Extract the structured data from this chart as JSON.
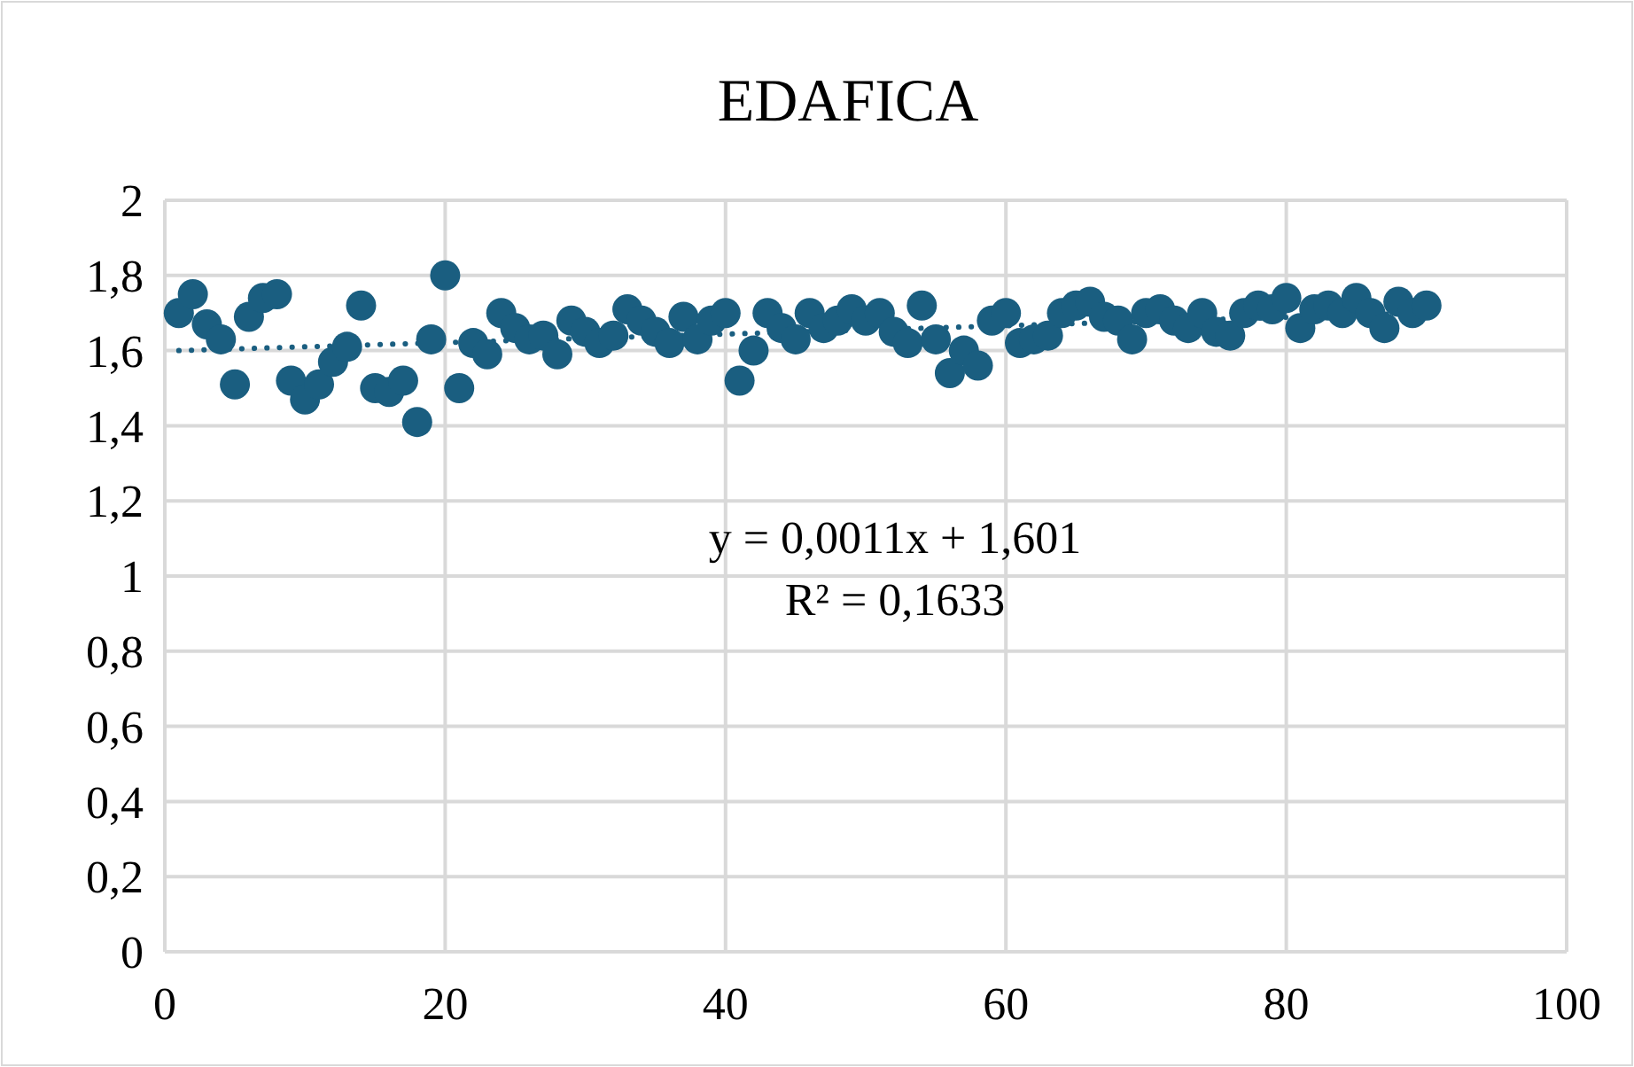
{
  "chart_data": {
    "type": "scatter",
    "title": "EDAFICA",
    "xlim": [
      0,
      100
    ],
    "xticks": [
      0,
      20,
      40,
      60,
      80,
      100
    ],
    "ylim": [
      0,
      2
    ],
    "yticks": [
      0,
      {
        "value": 0.2,
        "label": "0,2"
      },
      {
        "value": 0.4,
        "label": "0,4"
      },
      {
        "value": 0.6,
        "label": "0,6"
      },
      {
        "value": 0.8,
        "label": "0,8"
      },
      1,
      {
        "value": 1.2,
        "label": "1,2"
      },
      {
        "value": 1.4,
        "label": "1,4"
      },
      {
        "value": 1.6,
        "label": "1,6"
      },
      {
        "value": 1.8,
        "label": "1,8"
      },
      2
    ],
    "grid": true,
    "annotations": [
      "y = 0,0011x + 1,601",
      "R² = 0,1633"
    ],
    "series": [
      {
        "color": "#1a5e80",
        "marker": "circle",
        "x": [
          1,
          2,
          3,
          4,
          5,
          6,
          7,
          8,
          9,
          10,
          11,
          12,
          13,
          14,
          15,
          16,
          17,
          18,
          19,
          20,
          21,
          22,
          23,
          24,
          25,
          26,
          27,
          28,
          29,
          30,
          31,
          32,
          33,
          34,
          35,
          36,
          37,
          38,
          39,
          40,
          41,
          42,
          43,
          44,
          45,
          46,
          47,
          48,
          49,
          50,
          51,
          52,
          53,
          54,
          55,
          56,
          57,
          58,
          59,
          60,
          61,
          62,
          63,
          64,
          65,
          66,
          67,
          68,
          69,
          70,
          71,
          72,
          73,
          74,
          75,
          76,
          77,
          78,
          79,
          80,
          81,
          82,
          83,
          84,
          85,
          86,
          87,
          88,
          89,
          90
        ],
        "values": [
          1.7,
          1.75,
          1.67,
          1.63,
          1.51,
          1.69,
          1.74,
          1.75,
          1.52,
          1.47,
          1.51,
          1.57,
          1.61,
          1.72,
          1.5,
          1.49,
          1.52,
          1.41,
          1.63,
          1.8,
          1.5,
          1.62,
          1.59,
          1.7,
          1.66,
          1.63,
          1.64,
          1.59,
          1.68,
          1.65,
          1.62,
          1.64,
          1.71,
          1.68,
          1.65,
          1.62,
          1.69,
          1.63,
          1.68,
          1.7,
          1.52,
          1.6,
          1.7,
          1.66,
          1.63,
          1.7,
          1.66,
          1.68,
          1.71,
          1.68,
          1.7,
          1.65,
          1.62,
          1.72,
          1.63,
          1.54,
          1.6,
          1.56,
          1.68,
          1.7,
          1.62,
          1.63,
          1.64,
          1.7,
          1.72,
          1.73,
          1.69,
          1.68,
          1.63,
          1.7,
          1.71,
          1.68,
          1.66,
          1.7,
          1.65,
          1.64,
          1.7,
          1.72,
          1.71,
          1.74,
          1.66,
          1.71,
          1.72,
          1.7,
          1.74,
          1.7,
          1.66,
          1.73,
          1.7,
          1.72
        ]
      },
      {
        "type": "line",
        "color": "#1a5e80",
        "line_style": "dotted",
        "marker": "none",
        "x": [
          1,
          90
        ],
        "values": [
          1.6,
          1.7
        ]
      }
    ]
  }
}
